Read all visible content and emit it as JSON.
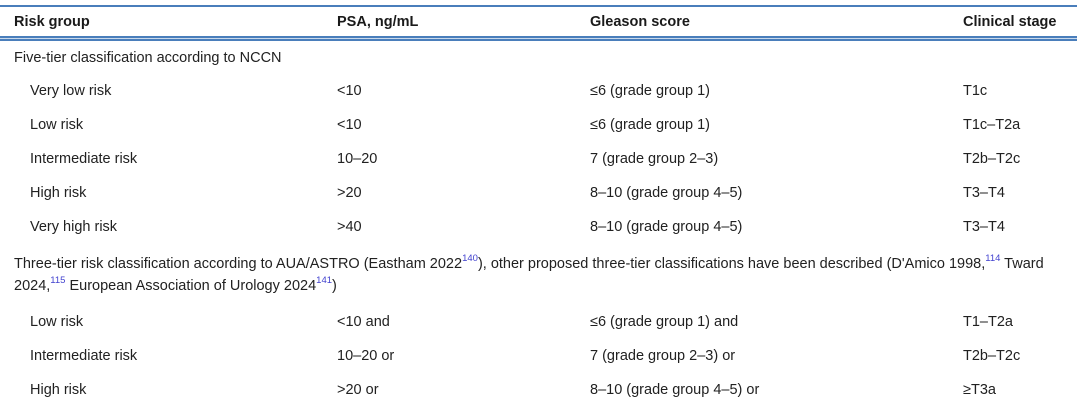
{
  "table": {
    "columns": [
      "Risk group",
      "PSA, ng/mL",
      "Gleason score",
      "Clinical stage"
    ],
    "sections": [
      {
        "heading_parts": [
          {
            "text": "Five-tier classification according to NCCN",
            "sup": false
          }
        ],
        "rows": [
          [
            "Very low risk",
            "<10",
            "≤6 (grade group 1)",
            "T1c"
          ],
          [
            "Low risk",
            "<10",
            "≤6 (grade group 1)",
            "T1c–T2a"
          ],
          [
            "Intermediate risk",
            "10–20",
            "7 (grade group 2–3)",
            "T2b–T2c"
          ],
          [
            "High risk",
            ">20",
            "8–10 (grade group 4–5)",
            "T3–T4"
          ],
          [
            "Very high risk",
            ">40",
            "8–10 (grade group 4–5)",
            "T3–T4"
          ]
        ]
      },
      {
        "heading_parts": [
          {
            "text": "Three-tier risk classification according to AUA/ASTRO (Eastham 2022",
            "sup": false
          },
          {
            "text": "140",
            "sup": true
          },
          {
            "text": "), other proposed three-tier classifications have been described (D'Amico 1998,",
            "sup": false
          },
          {
            "text": "114",
            "sup": true
          },
          {
            "text": " Tward 2024,",
            "sup": false
          },
          {
            "text": "115",
            "sup": true
          },
          {
            "text": " European Association of Urology 2024",
            "sup": false
          },
          {
            "text": "141",
            "sup": true
          },
          {
            "text": ")",
            "sup": false
          }
        ],
        "rows": [
          [
            "Low risk",
            "<10 and",
            "≤6 (grade group 1) and",
            "T1–T2a"
          ],
          [
            "Intermediate risk",
            "10–20 or",
            "7 (grade group 2–3) or",
            "T2b–T2c"
          ],
          [
            "High risk",
            ">20 or",
            "8–10 (grade group 4–5) or",
            "≥T3a"
          ]
        ]
      }
    ]
  },
  "colors": {
    "rule_blue": "#4a7ebb",
    "text": "#212121",
    "reference_superscript": "#4242cf",
    "background": "#ffffff"
  }
}
